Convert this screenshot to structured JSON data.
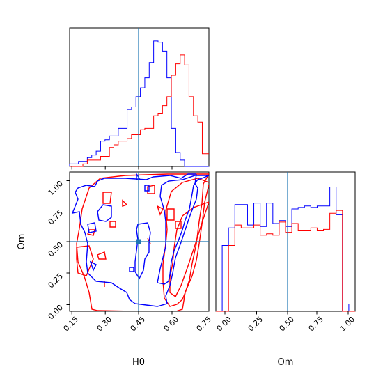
{
  "chart_data": {
    "type": "corner",
    "parameters": [
      "H0",
      "Om"
    ],
    "truths": {
      "H0": 0.45,
      "Om": 0.5
    },
    "colors": {
      "sample_a": "#0000ff",
      "sample_b": "#ff0000",
      "truth": "#1f77b4"
    },
    "panels": [
      {
        "id": "hist-H0",
        "type": "step-histogram",
        "xlim": [
          0.13,
          0.76
        ],
        "bins": [
          0.13,
          0.15,
          0.17,
          0.19,
          0.21,
          0.23,
          0.25,
          0.27,
          0.29,
          0.31,
          0.33,
          0.35,
          0.37,
          0.39,
          0.41,
          0.43,
          0.45,
          0.47,
          0.49,
          0.51,
          0.53,
          0.55,
          0.57,
          0.59,
          0.61,
          0.63,
          0.65,
          0.67,
          0.69,
          0.71,
          0.73,
          0.76
        ],
        "series": [
          {
            "color": "sample_a",
            "values": [
              0.02,
              0.02,
              0.04,
              0.04,
              0.07,
              0.09,
              0.12,
              0.2,
              0.21,
              0.24,
              0.24,
              0.3,
              0.3,
              0.45,
              0.47,
              0.55,
              0.62,
              0.7,
              0.82,
              0.99,
              0.98,
              0.91,
              0.7,
              0.3,
              0.11,
              0.05,
              0.0,
              0.0,
              0.0,
              0.0,
              0.0
            ]
          },
          {
            "color": "sample_b",
            "values": [
              0.0,
              0.0,
              0.0,
              0.02,
              0.05,
              0.05,
              0.05,
              0.08,
              0.08,
              0.15,
              0.17,
              0.2,
              0.2,
              0.22,
              0.25,
              0.25,
              0.29,
              0.3,
              0.3,
              0.4,
              0.42,
              0.48,
              0.55,
              0.72,
              0.81,
              0.88,
              0.8,
              0.55,
              0.4,
              0.35,
              0.1
            ]
          }
        ]
      },
      {
        "id": "contour-H0-Om",
        "type": "contour",
        "xlim": [
          0.13,
          0.76
        ],
        "ylim": [
          -0.05,
          1.09
        ],
        "xticks": [
          "0.15",
          "0.30",
          "0.45",
          "0.60",
          "0.75"
        ],
        "yticks": [
          "0.00",
          "0.25",
          "0.50",
          "0.75",
          "1.00"
        ],
        "xlabel": "H0",
        "ylabel": "Om",
        "truth_marker": [
          0.45,
          0.5
        ]
      },
      {
        "id": "hist-Om",
        "type": "step-histogram",
        "xlim": [
          -0.05,
          1.05
        ],
        "xticks": [
          "0.00",
          "0.25",
          "0.50",
          "0.75",
          "1.00"
        ],
        "xlabel": "Om",
        "bins": [
          -0.05,
          0.0,
          0.05,
          0.1,
          0.15,
          0.2,
          0.25,
          0.3,
          0.35,
          0.4,
          0.45,
          0.5,
          0.55,
          0.6,
          0.65,
          0.7,
          0.75,
          0.8,
          0.85,
          0.9,
          0.95,
          1.0,
          1.05
        ],
        "series": [
          {
            "color": "sample_a",
            "values": [
              0.0,
              0.45,
              0.57,
              0.73,
              0.73,
              0.59,
              0.74,
              0.58,
              0.74,
              0.6,
              0.62,
              0.58,
              0.7,
              0.71,
              0.72,
              0.71,
              0.72,
              0.72,
              0.85,
              0.66,
              0.0,
              0.05
            ]
          },
          {
            "color": "sample_b",
            "values": [
              0.0,
              0.0,
              0.45,
              0.59,
              0.57,
              0.57,
              0.59,
              0.52,
              0.53,
              0.52,
              0.61,
              0.54,
              0.6,
              0.55,
              0.55,
              0.57,
              0.55,
              0.56,
              0.67,
              0.69,
              0.0,
              0.0
            ]
          }
        ]
      }
    ]
  }
}
